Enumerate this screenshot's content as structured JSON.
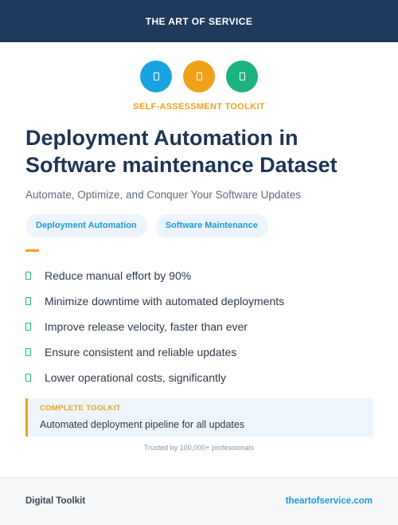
{
  "header": {
    "brand": "THE ART OF SERVICE"
  },
  "icons": [
    {
      "name": "document-icon",
      "color": "#1aa3e0"
    },
    {
      "name": "document-icon",
      "color": "#f0a11c"
    },
    {
      "name": "document-icon",
      "color": "#1db37e"
    }
  ],
  "kicker": "SELF-ASSESSMENT TOOLKIT",
  "title": "Deployment Automation in Software maintenance Dataset",
  "subtitle": "Automate, Optimize, and Conquer Your Software Updates",
  "tags": [
    "Deployment Automation",
    "Software Maintenance"
  ],
  "bullets": [
    "Reduce manual effort by 90%",
    "Minimize downtime with automated deployments",
    "Improve release velocity, faster than ever",
    "Ensure consistent and reliable updates",
    "Lower operational costs, significantly"
  ],
  "callout": {
    "label": "COMPLETE TOOLKIT",
    "text": "Automated deployment pipeline for all updates"
  },
  "trusted": "Trusted by 100,000+ professionals",
  "footer": {
    "left": "Digital Toolkit",
    "right": "theartofservice.com"
  },
  "colors": {
    "navy": "#1e3a5c",
    "blue": "#1aa3e0",
    "orange": "#f0a11c",
    "green": "#1db37e",
    "tag_text": "#1a9ad6"
  }
}
